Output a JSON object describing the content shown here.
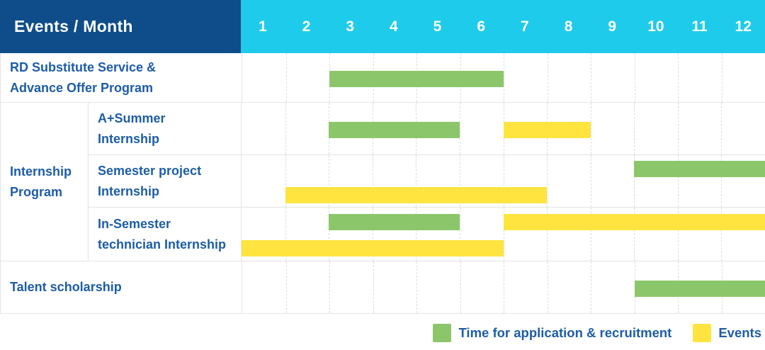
{
  "header": {
    "title": "Events / Month",
    "months": [
      "1",
      "2",
      "3",
      "4",
      "5",
      "6",
      "7",
      "8",
      "9",
      "10",
      "11",
      "12"
    ]
  },
  "rows": [
    {
      "id": "rd-substitute-service",
      "label_lines": [
        "RD Substitute Service &",
        "Advance Offer Program"
      ],
      "lanes": 1,
      "bars": [
        {
          "type": "recruitment",
          "start": 3,
          "end": 6,
          "lane": 0
        }
      ]
    },
    {
      "id": "internship-program",
      "group_label_lines": [
        "Internship",
        "Program"
      ],
      "children": [
        {
          "id": "a-plus-summer-internship",
          "label_lines": [
            "A+Summer",
            "Internship"
          ],
          "lanes": 1,
          "bars": [
            {
              "type": "recruitment",
              "start": 3,
              "end": 5,
              "lane": 0
            },
            {
              "type": "events",
              "start": 7,
              "end": 8,
              "lane": 0
            }
          ]
        },
        {
          "id": "semester-project-internship",
          "label_lines": [
            "Semester project",
            "Internship"
          ],
          "lanes": 2,
          "bars": [
            {
              "type": "recruitment",
              "start": 10,
              "end": 12,
              "lane": 0
            },
            {
              "type": "events",
              "start": 2,
              "end": 7,
              "lane": 1
            }
          ]
        },
        {
          "id": "in-semester-technician-internship",
          "label_lines": [
            "In-Semester",
            "technician Internship"
          ],
          "lanes": 2,
          "bars": [
            {
              "type": "recruitment",
              "start": 3,
              "end": 5,
              "lane": 0
            },
            {
              "type": "events",
              "start": 7,
              "end": 12,
              "lane": 0
            },
            {
              "type": "events",
              "start": 1,
              "end": 6,
              "lane": 1
            }
          ]
        }
      ]
    },
    {
      "id": "talent-scholarship",
      "label_lines": [
        "Talent scholarship"
      ],
      "lanes": 1,
      "bars": [
        {
          "type": "recruitment",
          "start": 10,
          "end": 12,
          "lane": 0
        }
      ]
    }
  ],
  "legend": [
    {
      "type": "recruitment",
      "label": "Time for application & recruitment"
    },
    {
      "type": "events",
      "label": "Events"
    }
  ],
  "colors": {
    "header_bg": "#0e4d8a",
    "months_bg": "#1fcbea",
    "recruitment": "#8cc66b",
    "events": "#ffe440",
    "label_text": "#1d5da7",
    "grid": "#e4e4e4"
  },
  "chart_data": {
    "type": "gantt",
    "title": "Events / Month",
    "x_axis": {
      "label": "Month",
      "ticks": [
        1,
        2,
        3,
        4,
        5,
        6,
        7,
        8,
        9,
        10,
        11,
        12
      ],
      "range": [
        1,
        12
      ]
    },
    "grid": true,
    "legend_position": "bottom-right",
    "series_legend": [
      {
        "name": "Time for application & recruitment",
        "color": "#8cc66b"
      },
      {
        "name": "Events",
        "color": "#ffe440"
      }
    ],
    "tasks": [
      {
        "name": "RD Substitute Service & Advance Offer Program",
        "group": null,
        "spans": [
          {
            "series": "Time for application & recruitment",
            "start_month": 3,
            "end_month": 6
          }
        ]
      },
      {
        "name": "A+Summer Internship",
        "group": "Internship Program",
        "spans": [
          {
            "series": "Time for application & recruitment",
            "start_month": 3,
            "end_month": 5
          },
          {
            "series": "Events",
            "start_month": 7,
            "end_month": 8
          }
        ]
      },
      {
        "name": "Semester project Internship",
        "group": "Internship Program",
        "spans": [
          {
            "series": "Time for application & recruitment",
            "start_month": 10,
            "end_month": 12
          },
          {
            "series": "Events",
            "start_month": 2,
            "end_month": 7
          }
        ]
      },
      {
        "name": "In-Semester technician Internship",
        "group": "Internship Program",
        "spans": [
          {
            "series": "Time for application & recruitment",
            "start_month": 3,
            "end_month": 5
          },
          {
            "series": "Events",
            "start_month": 7,
            "end_month": 12
          },
          {
            "series": "Events",
            "start_month": 1,
            "end_month": 6
          }
        ]
      },
      {
        "name": "Talent scholarship",
        "group": null,
        "spans": [
          {
            "series": "Time for application & recruitment",
            "start_month": 10,
            "end_month": 12
          }
        ]
      }
    ]
  }
}
